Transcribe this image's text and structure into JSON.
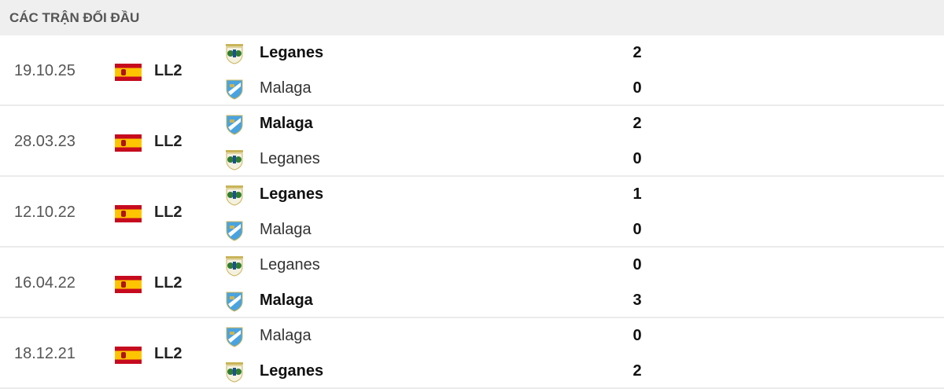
{
  "title": "CÁC TRẬN ĐỐI ĐẦU",
  "colors": {
    "header_bg": "#efefef",
    "leganes": "#2e7d32",
    "malaga": "#4aa3df"
  },
  "matches": [
    {
      "date": "19.10.25",
      "league": "LL2",
      "flag": "spain-flag",
      "home": {
        "name": "Leganes",
        "score": "2",
        "winner": true
      },
      "away": {
        "name": "Malaga",
        "score": "0",
        "winner": false
      }
    },
    {
      "date": "28.03.23",
      "league": "LL2",
      "flag": "spain-flag",
      "home": {
        "name": "Malaga",
        "score": "2",
        "winner": true
      },
      "away": {
        "name": "Leganes",
        "score": "0",
        "winner": false
      }
    },
    {
      "date": "12.10.22",
      "league": "LL2",
      "flag": "spain-flag",
      "home": {
        "name": "Leganes",
        "score": "1",
        "winner": true
      },
      "away": {
        "name": "Malaga",
        "score": "0",
        "winner": false
      }
    },
    {
      "date": "16.04.22",
      "league": "LL2",
      "flag": "spain-flag",
      "home": {
        "name": "Leganes",
        "score": "0",
        "winner": false
      },
      "away": {
        "name": "Malaga",
        "score": "3",
        "winner": true
      }
    },
    {
      "date": "18.12.21",
      "league": "LL2",
      "flag": "spain-flag",
      "home": {
        "name": "Malaga",
        "score": "0",
        "winner": false
      },
      "away": {
        "name": "Leganes",
        "score": "2",
        "winner": true
      }
    }
  ]
}
